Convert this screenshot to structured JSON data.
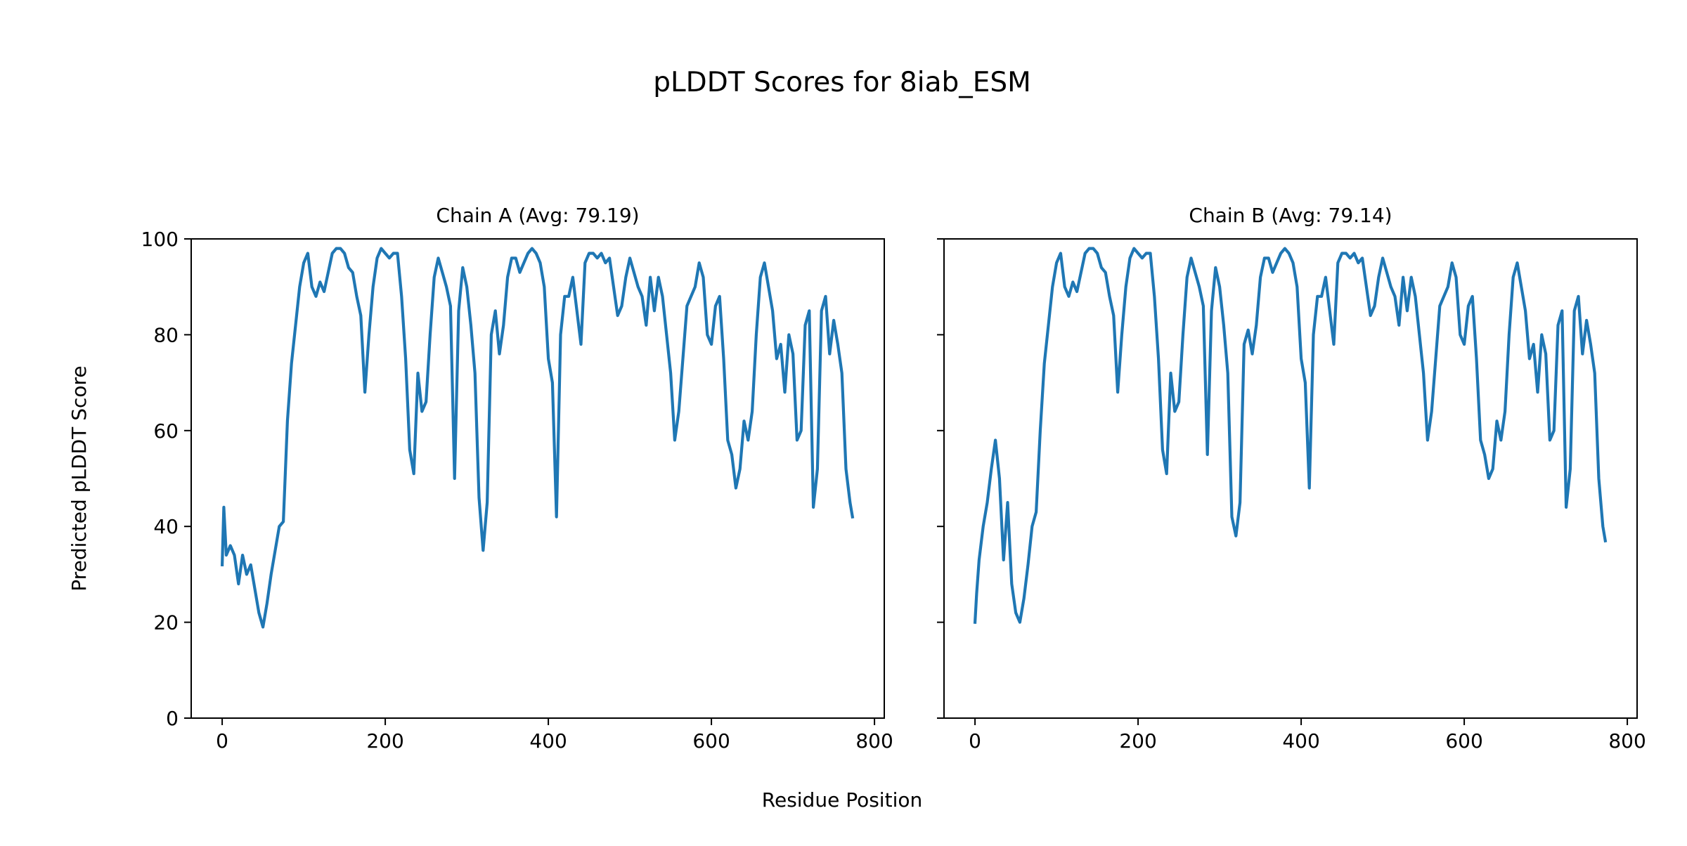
{
  "chart_data": {
    "type": "line",
    "title": "pLDDT Scores for 8iab_ESM",
    "xlabel": "Residue Position",
    "ylabel": "Predicted pLDDT Score",
    "ylim": [
      0,
      100
    ],
    "xlim": [
      -38,
      812
    ],
    "xticks": [
      0,
      200,
      400,
      600,
      800
    ],
    "yticks": [
      0,
      20,
      40,
      60,
      80,
      100
    ],
    "grid": false,
    "line_color": "#1f77b4",
    "panels": [
      {
        "title": "Chain A (Avg: 79.19)",
        "x": [
          0,
          2,
          5,
          10,
          15,
          20,
          25,
          30,
          35,
          40,
          45,
          50,
          55,
          60,
          65,
          70,
          75,
          80,
          85,
          90,
          95,
          100,
          105,
          110,
          115,
          120,
          125,
          130,
          135,
          140,
          145,
          150,
          155,
          160,
          165,
          170,
          175,
          180,
          185,
          190,
          195,
          200,
          205,
          210,
          215,
          220,
          225,
          230,
          235,
          240,
          245,
          250,
          255,
          260,
          265,
          270,
          275,
          280,
          285,
          290,
          295,
          300,
          305,
          310,
          315,
          320,
          325,
          330,
          335,
          340,
          345,
          350,
          355,
          360,
          365,
          370,
          375,
          380,
          385,
          390,
          395,
          400,
          405,
          410,
          415,
          420,
          425,
          430,
          435,
          440,
          445,
          450,
          455,
          460,
          465,
          470,
          475,
          480,
          485,
          490,
          495,
          500,
          505,
          510,
          515,
          520,
          525,
          530,
          535,
          540,
          545,
          550,
          555,
          560,
          565,
          570,
          575,
          580,
          585,
          590,
          595,
          600,
          605,
          610,
          615,
          620,
          625,
          630,
          635,
          640,
          645,
          650,
          655,
          660,
          665,
          670,
          675,
          680,
          685,
          690,
          695,
          700,
          705,
          710,
          715,
          720,
          725,
          730,
          735,
          740,
          745,
          750,
          755,
          760,
          765,
          770,
          773
        ],
        "y": [
          32,
          44,
          34,
          36,
          34,
          28,
          34,
          30,
          32,
          27,
          22,
          19,
          24,
          30,
          35,
          40,
          41,
          62,
          74,
          82,
          90,
          95,
          97,
          90,
          88,
          91,
          89,
          93,
          97,
          98,
          98,
          97,
          94,
          93,
          88,
          84,
          68,
          80,
          90,
          96,
          98,
          97,
          96,
          97,
          97,
          88,
          75,
          56,
          51,
          72,
          64,
          66,
          80,
          92,
          96,
          93,
          90,
          86,
          50,
          85,
          94,
          90,
          82,
          72,
          46,
          35,
          45,
          80,
          85,
          76,
          82,
          92,
          96,
          96,
          93,
          95,
          97,
          98,
          97,
          95,
          90,
          75,
          70,
          42,
          80,
          88,
          88,
          92,
          85,
          78,
          95,
          97,
          97,
          96,
          97,
          95,
          96,
          90,
          84,
          86,
          92,
          96,
          93,
          90,
          88,
          82,
          92,
          85,
          92,
          88,
          80,
          72,
          58,
          64,
          75,
          86,
          88,
          90,
          95,
          92,
          80,
          78,
          86,
          88,
          75,
          58,
          55,
          48,
          52,
          62,
          58,
          64,
          80,
          92,
          95,
          90,
          85,
          75,
          78,
          68,
          80,
          76,
          58,
          60,
          82,
          85,
          44,
          52,
          85,
          88,
          76,
          83,
          78,
          72,
          52,
          45,
          42
        ]
      },
      {
        "title": "Chain B (Avg: 79.14)",
        "x": [
          0,
          2,
          5,
          10,
          15,
          20,
          25,
          30,
          35,
          40,
          45,
          50,
          55,
          60,
          65,
          70,
          75,
          80,
          85,
          90,
          95,
          100,
          105,
          110,
          115,
          120,
          125,
          130,
          135,
          140,
          145,
          150,
          155,
          160,
          165,
          170,
          175,
          180,
          185,
          190,
          195,
          200,
          205,
          210,
          215,
          220,
          225,
          230,
          235,
          240,
          245,
          250,
          255,
          260,
          265,
          270,
          275,
          280,
          285,
          290,
          295,
          300,
          305,
          310,
          315,
          320,
          325,
          330,
          335,
          340,
          345,
          350,
          355,
          360,
          365,
          370,
          375,
          380,
          385,
          390,
          395,
          400,
          405,
          410,
          415,
          420,
          425,
          430,
          435,
          440,
          445,
          450,
          455,
          460,
          465,
          470,
          475,
          480,
          485,
          490,
          495,
          500,
          505,
          510,
          515,
          520,
          525,
          530,
          535,
          540,
          545,
          550,
          555,
          560,
          565,
          570,
          575,
          580,
          585,
          590,
          595,
          600,
          605,
          610,
          615,
          620,
          625,
          630,
          635,
          640,
          645,
          650,
          655,
          660,
          665,
          670,
          675,
          680,
          685,
          690,
          695,
          700,
          705,
          710,
          715,
          720,
          725,
          730,
          735,
          740,
          745,
          750,
          755,
          760,
          765,
          770,
          773
        ],
        "y": [
          20,
          26,
          33,
          40,
          45,
          52,
          58,
          50,
          33,
          45,
          28,
          22,
          20,
          25,
          32,
          40,
          43,
          60,
          74,
          82,
          90,
          95,
          97,
          90,
          88,
          91,
          89,
          93,
          97,
          98,
          98,
          97,
          94,
          93,
          88,
          84,
          68,
          80,
          90,
          96,
          98,
          97,
          96,
          97,
          97,
          88,
          75,
          56,
          51,
          72,
          64,
          66,
          80,
          92,
          96,
          93,
          90,
          86,
          55,
          85,
          94,
          90,
          82,
          72,
          42,
          38,
          45,
          78,
          81,
          76,
          82,
          92,
          96,
          96,
          93,
          95,
          97,
          98,
          97,
          95,
          90,
          75,
          70,
          48,
          80,
          88,
          88,
          92,
          85,
          78,
          95,
          97,
          97,
          96,
          97,
          95,
          96,
          90,
          84,
          86,
          92,
          96,
          93,
          90,
          88,
          82,
          92,
          85,
          92,
          88,
          80,
          72,
          58,
          64,
          75,
          86,
          88,
          90,
          95,
          92,
          80,
          78,
          86,
          88,
          75,
          58,
          55,
          50,
          52,
          62,
          58,
          64,
          80,
          92,
          95,
          90,
          85,
          75,
          78,
          68,
          80,
          76,
          58,
          60,
          82,
          85,
          44,
          52,
          85,
          88,
          76,
          83,
          78,
          72,
          50,
          40,
          37
        ]
      }
    ]
  }
}
